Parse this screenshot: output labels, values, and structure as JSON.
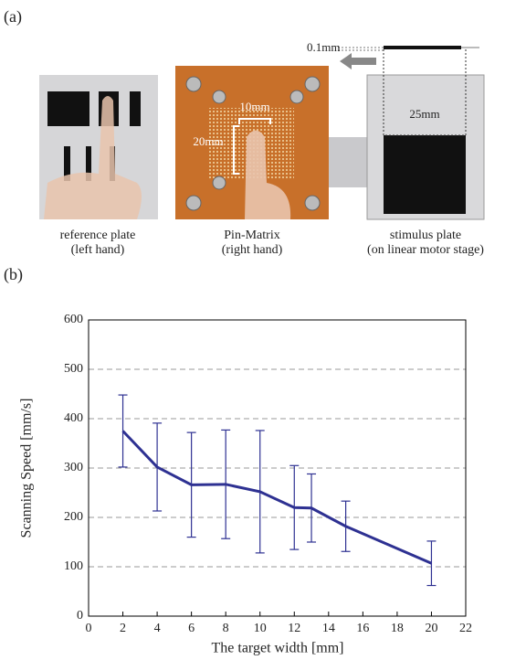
{
  "panel_a": {
    "label": "(a)",
    "annotations": {
      "thickness": "0.1mm",
      "plate_width": "25mm",
      "matrix_width": "10mm",
      "matrix_height": "20mm"
    },
    "captions": [
      {
        "title": "reference plate",
        "subtitle": "(left hand)"
      },
      {
        "title": "Pin-Matrix",
        "subtitle": "(right hand)"
      },
      {
        "title": "stimulus plate",
        "subtitle": "(on linear motor stage)"
      }
    ]
  },
  "panel_b": {
    "label": "(b)"
  },
  "chart_data": {
    "type": "line",
    "x_label": "The target width [mm]",
    "y_label": "Scanning Speed [mm/s]",
    "x": [
      2,
      4,
      6,
      8,
      10,
      12,
      13,
      15,
      20
    ],
    "series": [
      {
        "color": "#2e3192",
        "values": [
          375,
          302,
          266,
          267,
          252,
          220,
          219,
          182,
          107
        ],
        "errors": [
          73,
          89,
          106,
          110,
          124,
          85,
          69,
          51,
          45
        ]
      }
    ],
    "xlim": [
      0,
      22
    ],
    "xticks": [
      0,
      2,
      4,
      6,
      8,
      10,
      12,
      14,
      16,
      18,
      20,
      22
    ],
    "ylim": [
      0,
      600
    ],
    "yticks": [
      0,
      100,
      200,
      300,
      400,
      500,
      600
    ],
    "grid": true
  }
}
